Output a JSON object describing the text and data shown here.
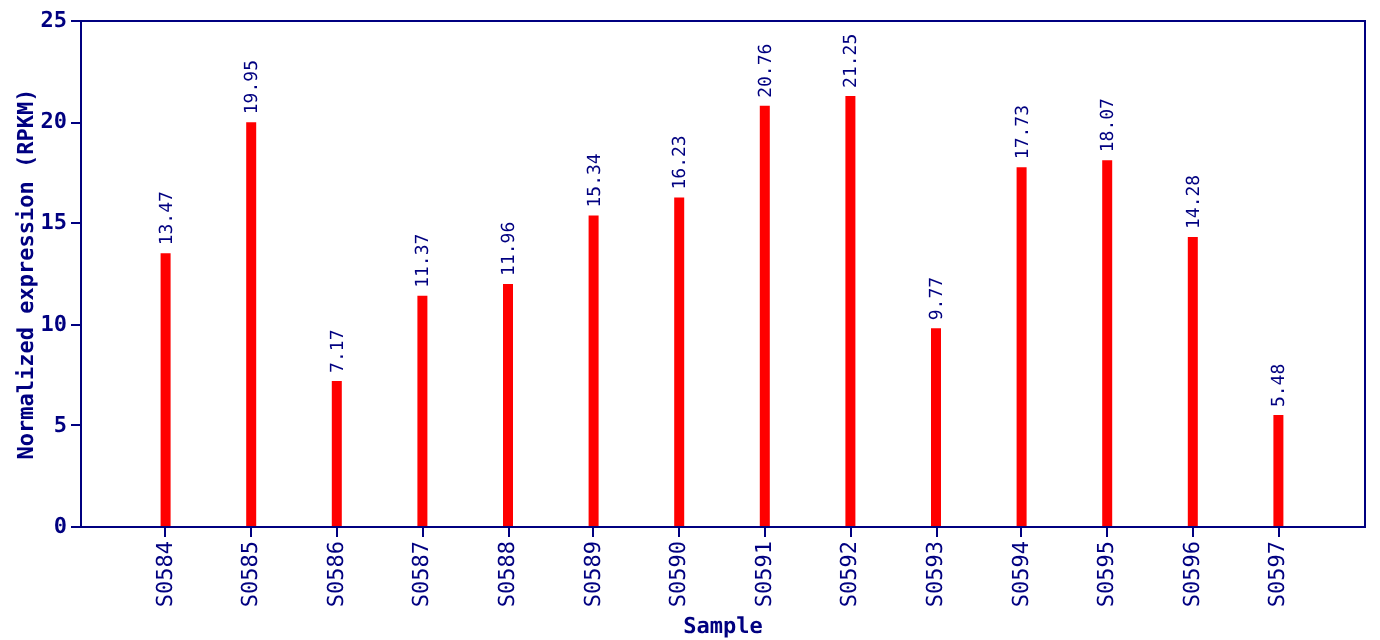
{
  "chart_data": {
    "type": "bar",
    "xlabel": "Sample",
    "ylabel": "Normalized expression (RPKM)",
    "categories": [
      "S0584",
      "S0585",
      "S0586",
      "S0587",
      "S0588",
      "S0589",
      "S0590",
      "S0591",
      "S0592",
      "S0593",
      "S0594",
      "S0595",
      "S0596",
      "S0597"
    ],
    "values": [
      13.47,
      19.95,
      7.17,
      11.37,
      11.96,
      15.34,
      16.23,
      20.76,
      21.25,
      9.77,
      17.73,
      18.07,
      14.28,
      5.48
    ],
    "color": "#ff0000",
    "ylim": [
      0,
      25
    ],
    "yticks": [
      0,
      5,
      10,
      15,
      20,
      25
    ],
    "grid": false,
    "data_labels": true
  }
}
